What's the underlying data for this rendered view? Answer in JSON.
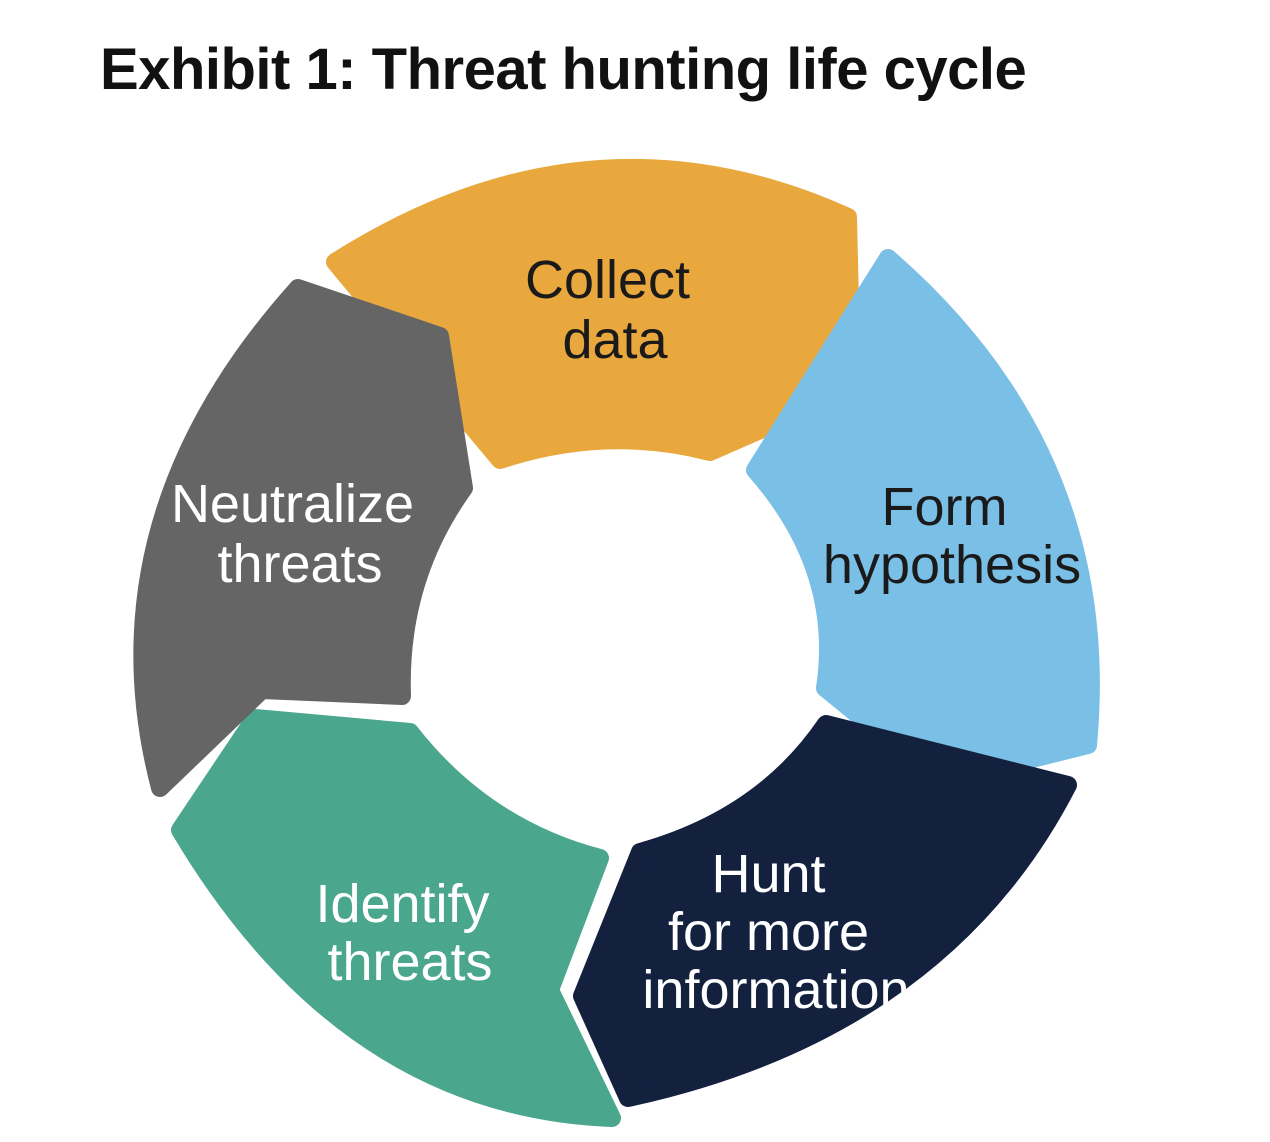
{
  "title": "Exhibit 1: Threat hunting life cycle",
  "stages": [
    {
      "id": "collect-data",
      "lines": [
        "Collect",
        "data"
      ],
      "color": "#E8A83E",
      "text_color": "#1A1A1A"
    },
    {
      "id": "form-hypothesis",
      "lines": [
        "Form",
        "hypothesis"
      ],
      "color": "#7ABFE6",
      "text_color": "#1A1A1A"
    },
    {
      "id": "hunt-for-more-information",
      "lines": [
        "Hunt",
        "for more",
        "information"
      ],
      "color": "#13213F",
      "text_color": "#FFFFFF"
    },
    {
      "id": "identify-threats",
      "lines": [
        "Identify",
        "threats"
      ],
      "color": "#4BA68E",
      "text_color": "#FFFFFF"
    },
    {
      "id": "neutralize-threats",
      "lines": [
        "Neutralize",
        "threats"
      ],
      "color": "#656565",
      "text_color": "#FFFFFF"
    }
  ]
}
